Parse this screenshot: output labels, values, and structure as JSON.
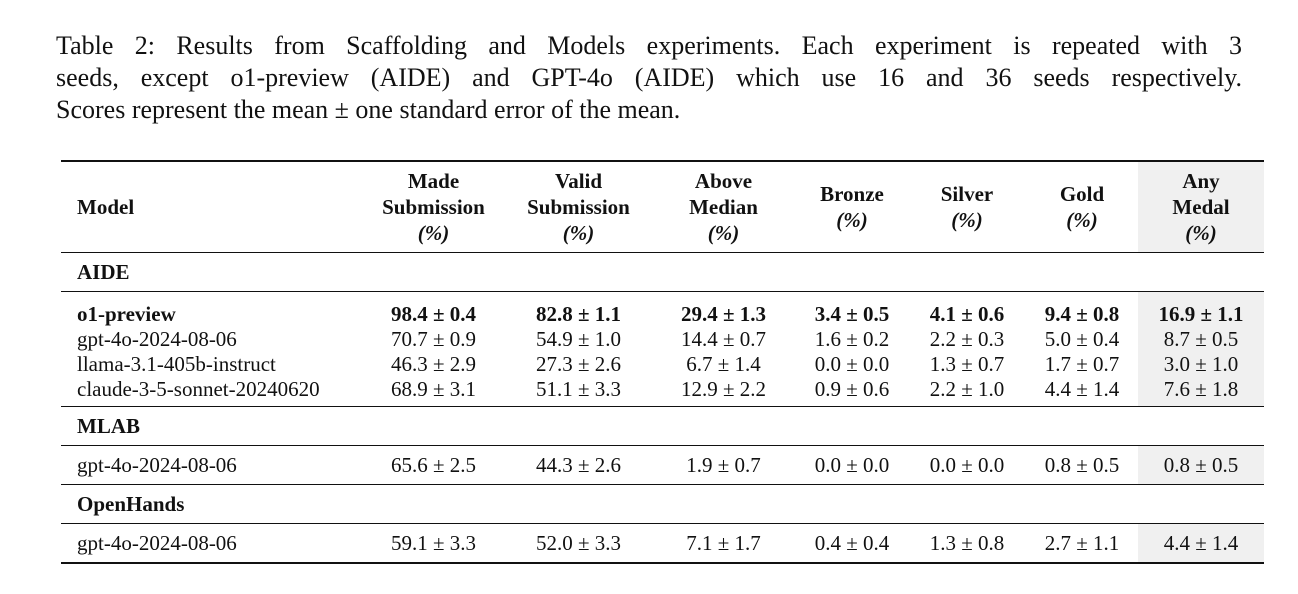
{
  "caption": {
    "lines": [
      "Table 2:  Results from Scaffolding and Models experiments.  Each experiment is repeated with 3",
      "seeds, except o1-preview (AIDE) and GPT-4o (AIDE) which use 16 and 36 seeds respectively.",
      "Scores represent the mean ± one standard error of the mean."
    ]
  },
  "table": {
    "headers": {
      "model": "Model",
      "made": [
        "Made",
        "Submission"
      ],
      "valid": [
        "Valid",
        "Submission"
      ],
      "above": [
        "Above",
        "Median"
      ],
      "bronze": [
        "Bronze"
      ],
      "silver": [
        "Silver"
      ],
      "gold": [
        "Gold"
      ],
      "any": [
        "Any",
        "Medal"
      ],
      "pct": "(%)"
    },
    "sections": [
      {
        "name": "AIDE",
        "rows": [
          {
            "model": "o1-preview",
            "bold": true,
            "made": "98.4 ± 0.4",
            "valid": "82.8 ± 1.1",
            "above": "29.4 ± 1.3",
            "bronze": "3.4 ± 0.5",
            "silver": "4.1 ± 0.6",
            "gold": "9.4 ± 0.8",
            "any": "16.9 ± 1.1"
          },
          {
            "model": "gpt-4o-2024-08-06",
            "made": "70.7 ± 0.9",
            "valid": "54.9 ± 1.0",
            "above": "14.4 ± 0.7",
            "bronze": "1.6 ± 0.2",
            "silver": "2.2 ± 0.3",
            "gold": "5.0 ± 0.4",
            "any": "8.7 ± 0.5"
          },
          {
            "model": "llama-3.1-405b-instruct",
            "made": "46.3 ± 2.9",
            "valid": "27.3 ± 2.6",
            "above": "6.7 ± 1.4",
            "bronze": "0.0 ± 0.0",
            "silver": "1.3 ± 0.7",
            "gold": "1.7 ± 0.7",
            "any": "3.0 ± 1.0"
          },
          {
            "model": "claude-3-5-sonnet-20240620",
            "made": "68.9 ± 3.1",
            "valid": "51.1 ± 3.3",
            "above": "12.9 ± 2.2",
            "bronze": "0.9 ± 0.6",
            "silver": "2.2 ± 1.0",
            "gold": "4.4 ± 1.4",
            "any": "7.6 ± 1.8"
          }
        ]
      },
      {
        "name": "MLAB",
        "rows": [
          {
            "model": "gpt-4o-2024-08-06",
            "made": "65.6 ± 2.5",
            "valid": "44.3 ± 2.6",
            "above": "1.9 ± 0.7",
            "bronze": "0.0 ± 0.0",
            "silver": "0.0 ± 0.0",
            "gold": "0.8 ± 0.5",
            "any": "0.8 ± 0.5"
          }
        ]
      },
      {
        "name": "OpenHands",
        "rows": [
          {
            "model": "gpt-4o-2024-08-06",
            "made": "59.1 ± 3.3",
            "valid": "52.0 ± 3.3",
            "above": "7.1 ± 1.7",
            "bronze": "0.4 ± 0.4",
            "silver": "1.3 ± 0.8",
            "gold": "2.7 ± 1.1",
            "any": "4.4 ± 1.4"
          }
        ]
      }
    ]
  }
}
